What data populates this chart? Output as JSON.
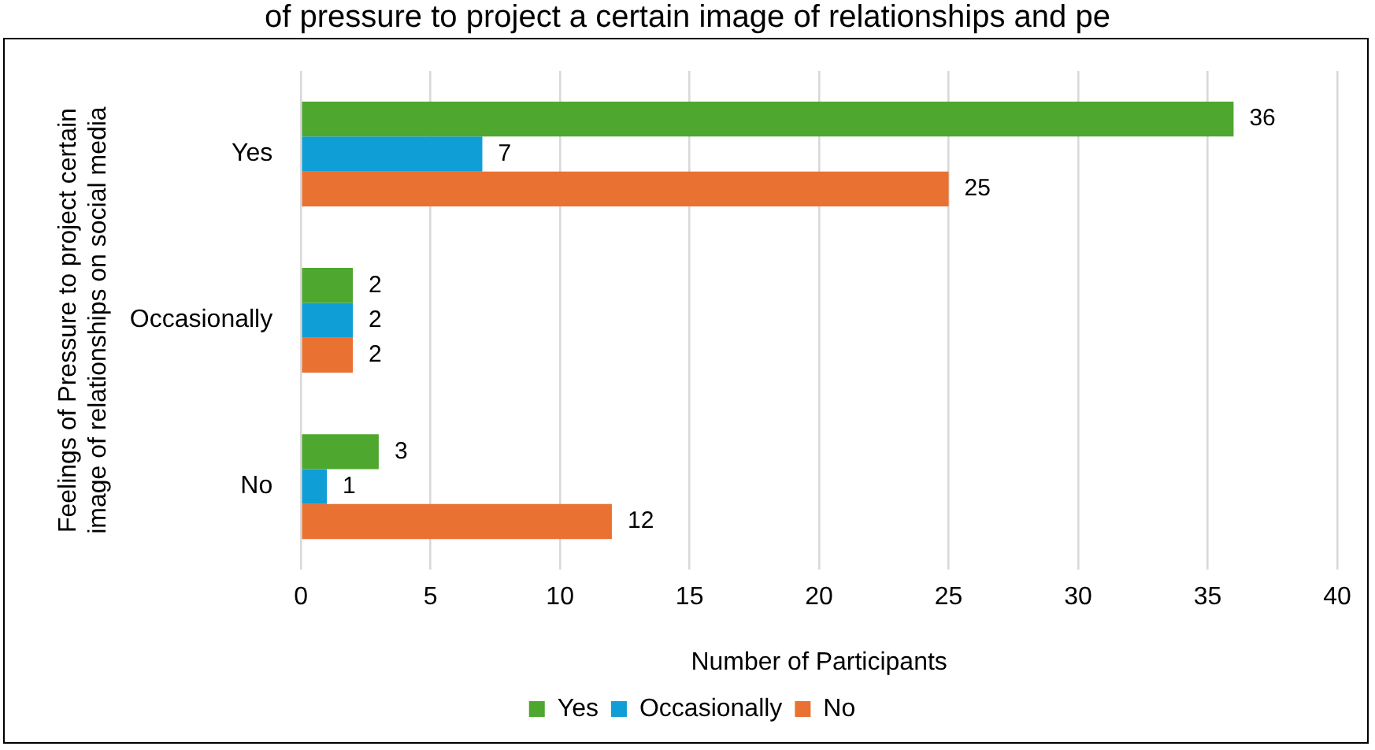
{
  "chart_data": {
    "type": "bar",
    "orientation": "horizontal",
    "title": "of pressure to project a certain image of relationships and pe",
    "categories": [
      "Yes",
      "Occasionally",
      "No"
    ],
    "series": [
      {
        "name": "Yes",
        "color": "#4ea72e",
        "values": [
          36,
          2,
          3
        ]
      },
      {
        "name": "Occasionally",
        "color": "#0f9ed5",
        "values": [
          7,
          2,
          1
        ]
      },
      {
        "name": "No",
        "color": "#e97132",
        "values": [
          25,
          2,
          12
        ]
      }
    ],
    "xlabel": "Number of Participants",
    "ylabel": "Feelings of Pressure to project certain image of relationships on social media",
    "xlim": [
      0,
      40
    ],
    "xticks": [
      0,
      5,
      10,
      15,
      20,
      25,
      30,
      35,
      40
    ],
    "grid": "x",
    "legend": "bottom",
    "data_labels": true
  }
}
